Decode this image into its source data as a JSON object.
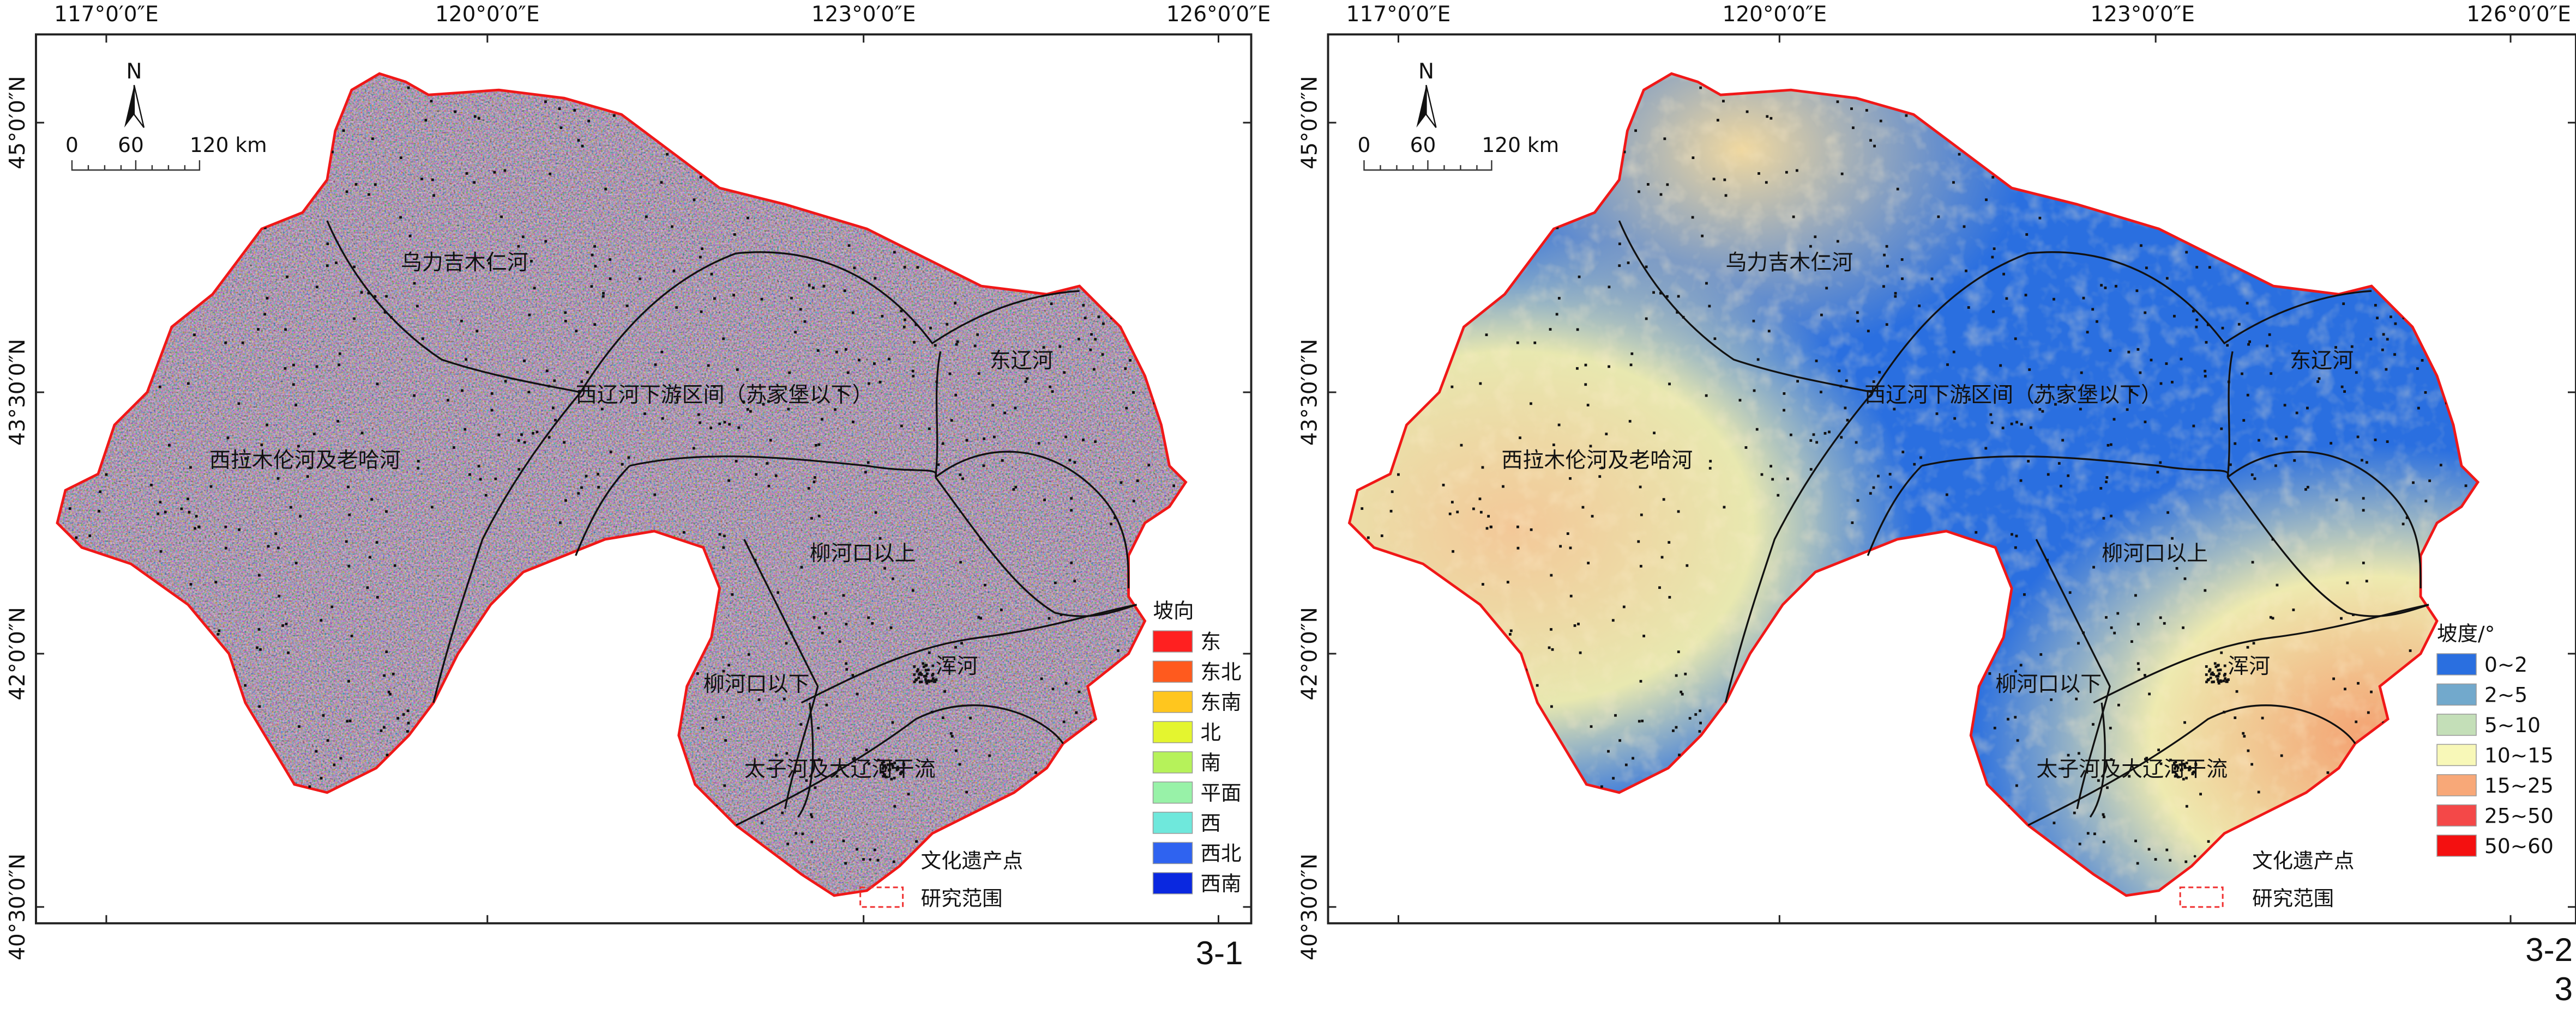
{
  "panels": [
    {
      "id": "3-1",
      "figure_label": "3-1",
      "lon_labels": [
        "117°0′0″E",
        "120°0′0″E",
        "123°0′0″E",
        "126°0′0″E"
      ],
      "lat_labels": [
        "45°0′0″N",
        "43°30′0″N",
        "42°0′0″N",
        "40°30′0″N"
      ],
      "north": "N",
      "scale": {
        "zero": "0",
        "mid": "60",
        "end": "120 km"
      },
      "regions": [
        "乌力吉木仁河",
        "西辽河下游区间（苏家堡以下）",
        "东辽河",
        "西拉木伦河及老哈河",
        "柳河口以上",
        "柳河口以下",
        "浑河",
        "太子河及大辽河干流"
      ],
      "legend": {
        "title": "坡向",
        "items": [
          {
            "label": "东",
            "color": "#ff2020"
          },
          {
            "label": "东北",
            "color": "#ff5a1e"
          },
          {
            "label": "东南",
            "color": "#ffc61e"
          },
          {
            "label": "北",
            "color": "#e4f52f"
          },
          {
            "label": "南",
            "color": "#b6f25a"
          },
          {
            "label": "平面",
            "color": "#98f2a8"
          },
          {
            "label": "西",
            "color": "#6fe8dc"
          },
          {
            "label": "西北",
            "color": "#2f63f0"
          },
          {
            "label": "西南",
            "color": "#0a28e0"
          }
        ],
        "points_label": "文化遗产点",
        "boundary_label": "研究范围"
      }
    },
    {
      "id": "3-2",
      "figure_label": "3-2",
      "sub_label": "3",
      "lon_labels": [
        "117°0′0″E",
        "120°0′0″E",
        "123°0′0″E",
        "126°0′0″E"
      ],
      "lat_labels": [
        "45°0′0″N",
        "43°30′0″N",
        "42°0′0″N",
        "40°30′0″N"
      ],
      "north": "N",
      "scale": {
        "zero": "0",
        "mid": "60",
        "end": "120 km"
      },
      "regions": [
        "乌力吉木仁河",
        "西辽河下游区间（苏家堡以下）",
        "东辽河",
        "西拉木伦河及老哈河",
        "柳河口以上",
        "柳河口以下",
        "浑河",
        "太子河及大辽河干流"
      ],
      "legend": {
        "title": "坡度/°",
        "items": [
          {
            "label": "0~2",
            "color": "#2a6fe0"
          },
          {
            "label": "2~5",
            "color": "#72a9cc"
          },
          {
            "label": "5~10",
            "color": "#c4dfb8"
          },
          {
            "label": "10~15",
            "color": "#f8f8b8"
          },
          {
            "label": "15~25",
            "color": "#f8a878"
          },
          {
            "label": "25~50",
            "color": "#f44848"
          },
          {
            "label": "50~60",
            "color": "#f41010"
          }
        ],
        "points_label": "文化遗产点",
        "boundary_label": "研究范围"
      }
    }
  ]
}
